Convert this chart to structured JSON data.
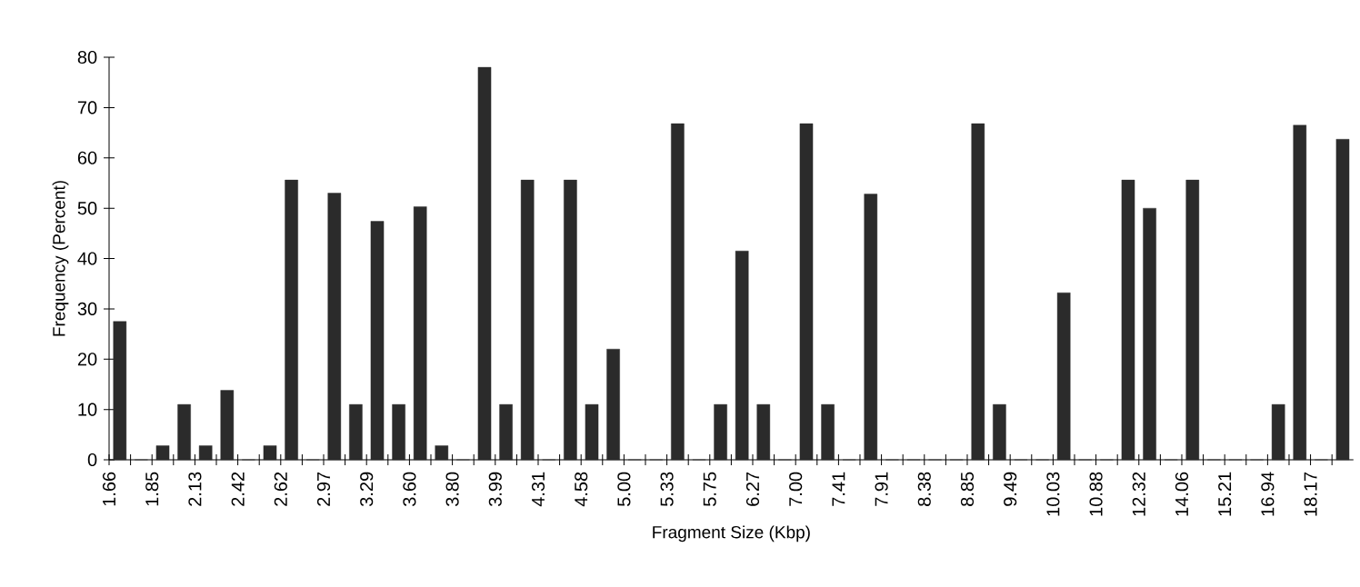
{
  "chart_data": {
    "type": "bar",
    "xlabel": "Fragment Size (Kbp)",
    "ylabel": "Frequency (Percent)",
    "categories": [
      "1.66",
      null,
      "1.85",
      null,
      "2.13",
      null,
      "2.42",
      null,
      "2.62",
      null,
      "2.97",
      null,
      "3.29",
      null,
      "3.60",
      null,
      "3.80",
      null,
      "3.99",
      null,
      "4.31",
      null,
      "4.58",
      null,
      "5.00",
      null,
      "5.33",
      null,
      "5.75",
      null,
      "6.27",
      null,
      "7.00",
      null,
      "7.41",
      null,
      "7.91",
      null,
      "8.38",
      null,
      "8.85",
      null,
      "9.49",
      null,
      "10.03",
      null,
      "10.88",
      null,
      "12.32",
      null,
      "14.06",
      null,
      "15.21",
      null,
      "16.94",
      null,
      "18.17",
      null
    ],
    "values": [
      27.5,
      0,
      2.8,
      11,
      2.8,
      13.8,
      0,
      2.8,
      55.6,
      0,
      53,
      11,
      47.4,
      11,
      50.3,
      2.8,
      0,
      78,
      11,
      55.6,
      0,
      55.6,
      11,
      22,
      0,
      0,
      66.8,
      0,
      11,
      41.5,
      11,
      0,
      66.8,
      11,
      0,
      52.8,
      0,
      0,
      0,
      0,
      66.8,
      11,
      0,
      0,
      33.2,
      0,
      0,
      55.6,
      50,
      0,
      55.6,
      0,
      0,
      0,
      11,
      66.5,
      0,
      63.7
    ],
    "color": "#2b2b2b",
    "ylim": [
      0,
      80
    ],
    "yticks": [
      0,
      10,
      20,
      30,
      40,
      50,
      60,
      70,
      80
    ]
  }
}
